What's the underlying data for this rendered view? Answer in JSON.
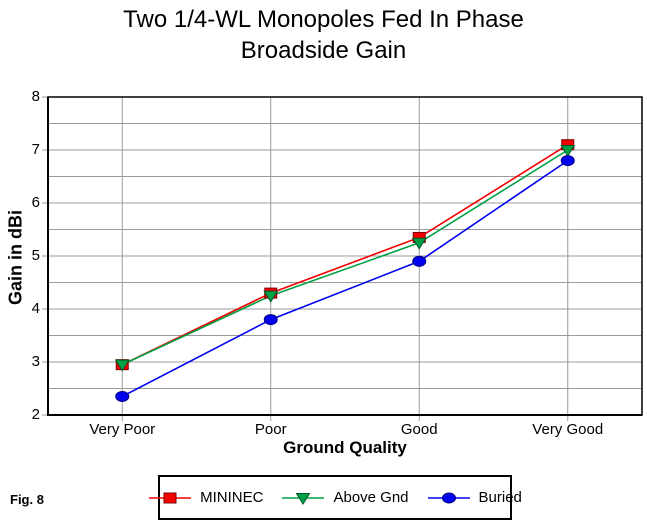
{
  "header": {
    "title_line1": "Two 1/4-WL Monopoles Fed In Phase",
    "title_line2": "Broadside Gain"
  },
  "figure_label": "Fig. 8",
  "colors": {
    "background": "#ffffff",
    "grid": "#9b9b9b",
    "axis": "#000000",
    "mininec_red": "#f40000",
    "above_gnd_green": "#00a046",
    "buried_blue": "#0000f0"
  },
  "chart_data": {
    "type": "line",
    "title": "Two 1/4-WL Monopoles Fed In Phase Broadside Gain",
    "categories": [
      "Very Poor",
      "Poor",
      "Good",
      "Very Good"
    ],
    "xlabel": "Ground Quality",
    "ylabel": "Gain in dBi",
    "ylim": [
      2,
      8
    ],
    "yticks": [
      2,
      3,
      4,
      5,
      6,
      7,
      8
    ],
    "grid_step": 0.5,
    "grid": true,
    "legend_position": "bottom",
    "series": [
      {
        "name": "MININEC",
        "marker": "square",
        "color": "#f40000",
        "edge": "#7d0000",
        "values": [
          2.95,
          4.3,
          5.35,
          7.1
        ]
      },
      {
        "name": "Above Gnd",
        "marker": "triangle-down",
        "color": "#00a046",
        "edge": "#005a28",
        "values": [
          2.95,
          4.25,
          5.25,
          7.0
        ]
      },
      {
        "name": "Buried",
        "marker": "circle",
        "color": "#0000f0",
        "edge": "#000080",
        "values": [
          2.35,
          3.8,
          4.9,
          6.8
        ]
      }
    ]
  }
}
